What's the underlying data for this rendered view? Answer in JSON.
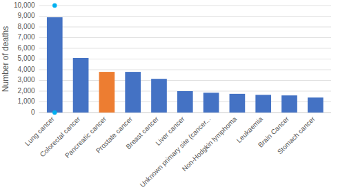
{
  "chart_data": {
    "type": "bar",
    "categories": [
      "Lung cancer",
      "Colorectal cancer",
      "Pancreatic cancer",
      "Prostate cancer",
      "Breast cancer",
      "Liver cancer",
      "Unknown primary site (cancer...",
      "Non-Hodgkin lymphoma",
      "Leukaemia",
      "Brain Cancer",
      "Stomach cancer"
    ],
    "series": [
      {
        "type": "bar",
        "colors": [
          "#4472c4",
          "#4472c4",
          "#ed7d31",
          "#4472c4",
          "#4472c4",
          "#4472c4",
          "#4472c4",
          "#4472c4",
          "#4472c4",
          "#4472c4",
          "#4472c4"
        ],
        "values": [
          8900,
          5100,
          3800,
          3800,
          3150,
          2000,
          1850,
          1750,
          1650,
          1600,
          1400
        ]
      },
      {
        "type": "scatter",
        "color": "#00b0f0",
        "marker": "circle",
        "x": [
          "Lung cancer",
          "Lung cancer"
        ],
        "values": [
          0,
          10000
        ]
      }
    ],
    "ylabel": "Number of deaths",
    "ylim": [
      0,
      10000
    ],
    "yticks": [
      0,
      {
        "value": 1000,
        "label": "1,000"
      },
      {
        "value": 2000,
        "label": "2,000"
      },
      {
        "value": 3000,
        "label": "3,000"
      },
      {
        "value": 4000,
        "label": "4,000"
      },
      {
        "value": 5000,
        "label": "5,000"
      },
      {
        "value": 6000,
        "label": "6,000"
      },
      {
        "value": 7000,
        "label": "7,000"
      },
      {
        "value": 8000,
        "label": "8,000"
      },
      {
        "value": 9000,
        "label": "9,000"
      },
      {
        "value": 10000,
        "label": "10,000"
      }
    ],
    "grid": true
  }
}
